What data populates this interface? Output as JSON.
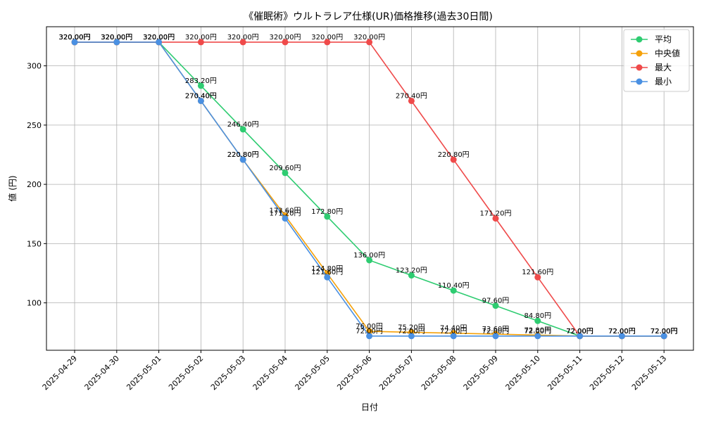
{
  "chart_data": {
    "type": "line",
    "title": "《催眠術》ウルトラレア仕様(UR)価格推移(過去30日間)",
    "xlabel": "日付",
    "ylabel": "値 (円)",
    "categories": [
      "2025-04-29",
      "2025-04-30",
      "2025-05-01",
      "2025-05-02",
      "2025-05-03",
      "2025-05-04",
      "2025-05-05",
      "2025-05-06",
      "2025-05-07",
      "2025-05-08",
      "2025-05-09",
      "2025-05-10",
      "2025-05-11",
      "2025-05-12",
      "2025-05-13"
    ],
    "ylim": [
      60,
      333
    ],
    "yticks": [
      100,
      150,
      200,
      250,
      300
    ],
    "grid": true,
    "legend_position": "top-right",
    "value_suffix": "円",
    "series": [
      {
        "name": "平均",
        "color": "#2ecc71",
        "values": [
          320,
          320,
          320,
          283.2,
          246.4,
          209.6,
          172.8,
          136.0,
          123.2,
          110.4,
          97.6,
          84.8,
          72,
          72,
          72
        ]
      },
      {
        "name": "中央値",
        "color": "#f5a10a",
        "values": [
          320,
          320,
          320,
          270.4,
          220.8,
          173.6,
          124.8,
          76.0,
          75.2,
          74.4,
          73.6,
          72.8,
          72,
          72,
          72
        ]
      },
      {
        "name": "最大",
        "color": "#ef4a4a",
        "values": [
          320,
          320,
          320,
          320,
          320,
          320,
          320,
          320,
          270.4,
          220.8,
          171.2,
          121.6,
          72,
          72,
          72
        ]
      },
      {
        "name": "最小",
        "color": "#4a90e2",
        "values": [
          320,
          320,
          320,
          270.4,
          220.8,
          171.2,
          121.6,
          72,
          72,
          72,
          72,
          72,
          72,
          72,
          72
        ]
      }
    ]
  }
}
